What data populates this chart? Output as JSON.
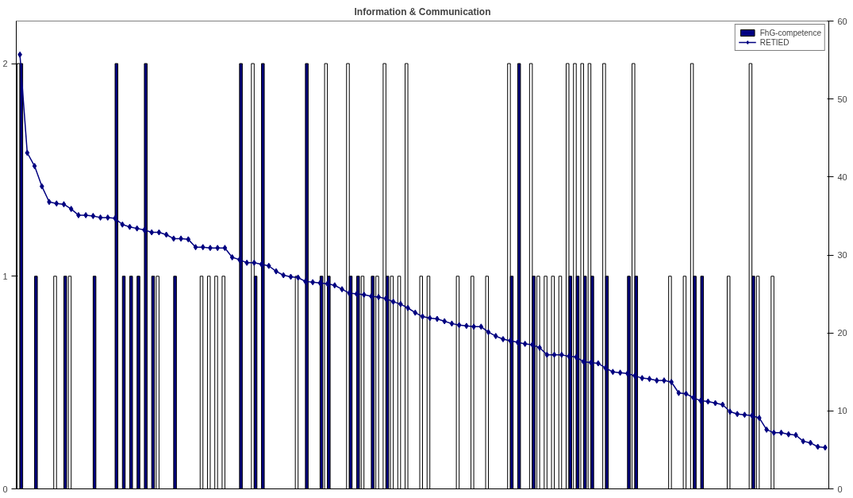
{
  "chart_data": {
    "type": "bar",
    "title": "Information & Communication",
    "categories": [
      null,
      null,
      null,
      null,
      null,
      null,
      null,
      null,
      null,
      null,
      null,
      null,
      null,
      null,
      null,
      null,
      null,
      null,
      null,
      null,
      null,
      null,
      null,
      null,
      null,
      null,
      null,
      null,
      null,
      null,
      null,
      null,
      null,
      null,
      null,
      null,
      null,
      null,
      null,
      null,
      null,
      null,
      null,
      null,
      null,
      null,
      null,
      null,
      null,
      null,
      null,
      null,
      null,
      null,
      null,
      null,
      null,
      null,
      null,
      null,
      null,
      null,
      null,
      null,
      null,
      null,
      null,
      null,
      null,
      null,
      null,
      null,
      null,
      null,
      null,
      null,
      null,
      null,
      null,
      null,
      null,
      null,
      null,
      null,
      null,
      null,
      null,
      null,
      null,
      null,
      null,
      null,
      null,
      null,
      null,
      null,
      null,
      null,
      null,
      null,
      null,
      null,
      null,
      null,
      null,
      null,
      null,
      null,
      null,
      null,
      null
    ],
    "series": [
      {
        "color": "#ffffff",
        "values": [
          2,
          0,
          0,
          0,
          0,
          1,
          0,
          1,
          0,
          0,
          0,
          0,
          0,
          0,
          0,
          0,
          0,
          0,
          0,
          1,
          0,
          0,
          0,
          0,
          0,
          1,
          1,
          1,
          1,
          0,
          0,
          0,
          2,
          0,
          0,
          0,
          0,
          0,
          1,
          0,
          0,
          0,
          2,
          0,
          0,
          2,
          0,
          1,
          0,
          1,
          2,
          1,
          1,
          2,
          0,
          1,
          1,
          0,
          0,
          0,
          1,
          0,
          1,
          0,
          1,
          0,
          0,
          2,
          0,
          0,
          2,
          1,
          1,
          1,
          1,
          2,
          2,
          2,
          2,
          0,
          2,
          0,
          0,
          0,
          2,
          0,
          0,
          0,
          0,
          1,
          0,
          1,
          2,
          0,
          0,
          0,
          0,
          1,
          0,
          0,
          2,
          1,
          0,
          1,
          0,
          0,
          0,
          0,
          0,
          0,
          0
        ]
      },
      {
        "name": "FhG-competence",
        "color": "#000080",
        "values": [
          2,
          0,
          1,
          0,
          0,
          0,
          1,
          0,
          0,
          0,
          1,
          0,
          0,
          2,
          1,
          1,
          1,
          2,
          1,
          0,
          0,
          1,
          0,
          0,
          0,
          0,
          0,
          0,
          0,
          0,
          2,
          0,
          1,
          2,
          0,
          0,
          0,
          0,
          0,
          2,
          0,
          1,
          1,
          0,
          0,
          1,
          1,
          0,
          1,
          0,
          1,
          0,
          0,
          0,
          0,
          0,
          0,
          0,
          0,
          0,
          0,
          0,
          0,
          0,
          0,
          0,
          0,
          1,
          2,
          0,
          1,
          0,
          0,
          0,
          0,
          1,
          1,
          1,
          1,
          0,
          1,
          0,
          0,
          1,
          1,
          0,
          0,
          0,
          0,
          0,
          0,
          0,
          1,
          1,
          0,
          0,
          0,
          0,
          0,
          0,
          1,
          0,
          0,
          0,
          0,
          0,
          0,
          0,
          0,
          0,
          0
        ]
      },
      {
        "name": "RETIED",
        "type": "line",
        "axis": "y2",
        "color": "#000080",
        "values": [
          55.7,
          43.1,
          41.4,
          38.8,
          36.8,
          36.6,
          36.5,
          35.9,
          35.1,
          35.1,
          35.0,
          34.8,
          34.8,
          34.7,
          33.9,
          33.6,
          33.4,
          33.2,
          32.9,
          32.9,
          32.6,
          32.1,
          32.1,
          32.0,
          31.0,
          31.0,
          30.9,
          30.9,
          30.9,
          29.7,
          29.4,
          29.0,
          29.0,
          28.8,
          28.6,
          27.9,
          27.4,
          27.2,
          27.1,
          26.6,
          26.5,
          26.4,
          26.3,
          26.1,
          25.6,
          25.1,
          25.0,
          24.9,
          24.7,
          24.6,
          24.4,
          24.0,
          23.7,
          23.2,
          22.6,
          22.1,
          21.9,
          21.8,
          21.5,
          21.2,
          21.0,
          20.9,
          20.8,
          20.8,
          20.1,
          19.6,
          19.2,
          19.0,
          18.8,
          18.6,
          18.5,
          18.1,
          17.2,
          17.2,
          17.2,
          17.0,
          16.9,
          16.3,
          16.2,
          16.1,
          15.5,
          15.0,
          14.9,
          14.8,
          14.5,
          14.2,
          14.1,
          13.9,
          13.9,
          13.7,
          12.3,
          12.2,
          11.7,
          11.3,
          11.2,
          11.0,
          10.8,
          9.9,
          9.6,
          9.5,
          9.4,
          9.1,
          7.6,
          7.2,
          7.2,
          7.0,
          6.9,
          6.1,
          5.9,
          5.4,
          5.3
        ]
      }
    ],
    "ylim": [
      0,
      2.2
    ],
    "yticks": [
      0,
      1,
      2
    ],
    "y2lim": [
      0,
      60
    ],
    "y2ticks": [
      0,
      10,
      20,
      30,
      40,
      50,
      60
    ],
    "marker": "diamond",
    "legend": "top right"
  }
}
